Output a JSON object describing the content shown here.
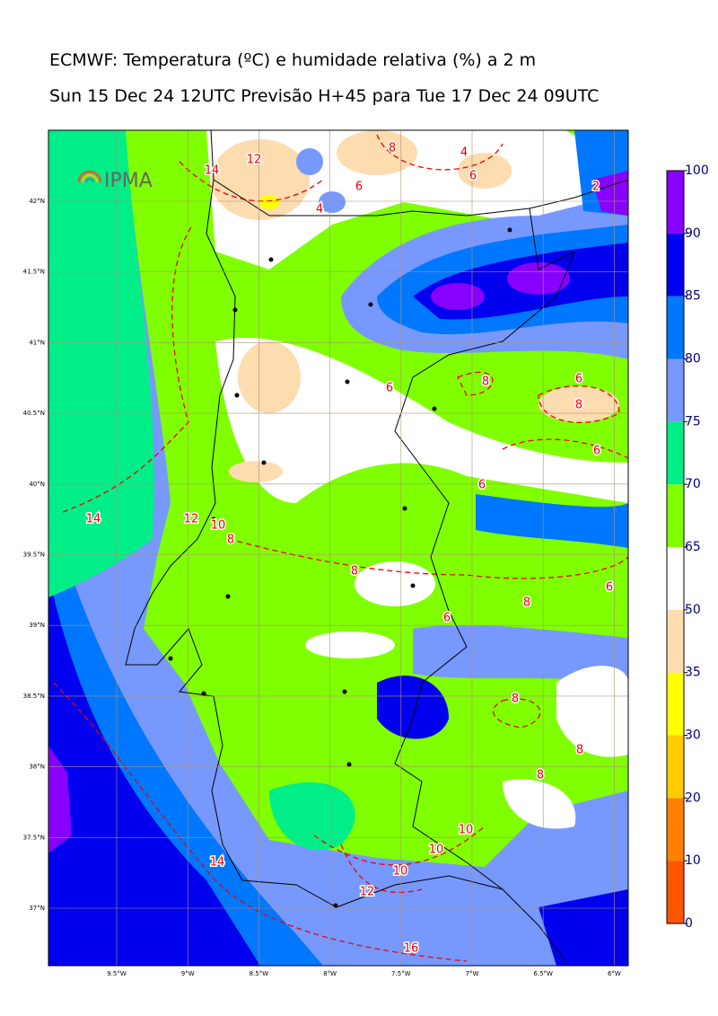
{
  "title": {
    "line1": "ECMWF: Temperatura (ºC) e humidade relativa (%) a 2 m",
    "line2": "Sun 15 Dec 24 12UTC Previsão H+45 para Tue 17 Dec 24 09UTC"
  },
  "logo": "IPMA",
  "map": {
    "lon_labels": [
      "9.5°W",
      "9°W",
      "8.5°W",
      "8°W",
      "7.5°W",
      "7°W",
      "6.5°W",
      "6°W"
    ],
    "lat_labels": [
      "42°N",
      "41.5°N",
      "41°N",
      "40.5°N",
      "40°N",
      "39.5°N",
      "39°N",
      "38.5°N",
      "38°N",
      "37.5°N",
      "37°N"
    ],
    "contour_labels": [
      14,
      12,
      10,
      8,
      8,
      6,
      8,
      6,
      8,
      8,
      8,
      10,
      10,
      10,
      12,
      14,
      16,
      6,
      8,
      6,
      8,
      6,
      6,
      12,
      8,
      4,
      6,
      6,
      4,
      2,
      14
    ]
  },
  "colorbar": {
    "levels": [
      0,
      10,
      20,
      30,
      35,
      50,
      65,
      70,
      75,
      80,
      85,
      90,
      100
    ],
    "colors": [
      "#ff5500",
      "#ff8000",
      "#ffcc00",
      "#ffff00",
      "#fddcb0",
      "#ffffff",
      "#80ff00",
      "#00ee88",
      "#7799ff",
      "#0077ff",
      "#0000ee",
      "#8800ff"
    ]
  }
}
